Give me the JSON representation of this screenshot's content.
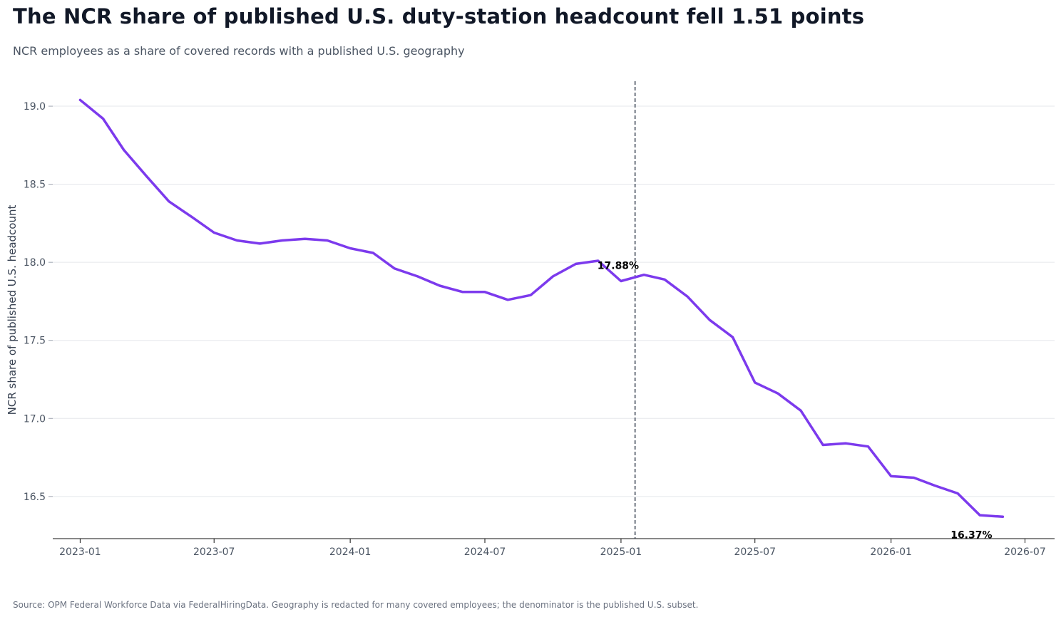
{
  "header": {
    "title": "The NCR share of published U.S. duty-station headcount fell 1.51 points",
    "subtitle": "NCR employees as a share of covered records with a published U.S. geography"
  },
  "footer": {
    "source": "Source: OPM Federal Workforce Data via FederalHiringData. Geography is redacted for many covered employees; the denominator is the published U.S. subset."
  },
  "chart_data": {
    "type": "line",
    "title": "The NCR share of published U.S. duty-station headcount fell 1.51 points",
    "subtitle": "NCR employees as a share of covered records with a published U.S. geography",
    "xlabel": "",
    "ylabel": "NCR share of published U.S. headcount",
    "ylim": [
      16.23,
      19.16
    ],
    "xlim": [
      "2022-11-25",
      "2026-08-10"
    ],
    "grid": "horizontal",
    "y_ticks": [
      16.5,
      17.0,
      17.5,
      18.0,
      18.5,
      19.0
    ],
    "y_tick_labels": [
      "16.5",
      "17.0",
      "17.5",
      "18.0",
      "18.5",
      "19.0"
    ],
    "x_ticks": [
      "2023-01-01",
      "2023-07-01",
      "2024-01-01",
      "2024-07-01",
      "2025-01-01",
      "2025-07-01",
      "2026-01-01",
      "2026-07-01"
    ],
    "x_tick_labels": [
      "2023-01",
      "2023-07",
      "2024-01",
      "2024-07",
      "2025-01",
      "2025-07",
      "2026-01",
      "2026-07"
    ],
    "line_color": "#7c3aed",
    "series": [
      {
        "x": [
          "2023-01-01",
          "2023-02-01",
          "2023-03-01",
          "2023-04-01",
          "2023-05-01",
          "2023-06-01",
          "2023-07-01",
          "2023-08-01",
          "2023-09-01",
          "2023-10-01",
          "2023-11-01",
          "2023-12-01",
          "2024-01-01",
          "2024-02-01",
          "2024-03-01",
          "2024-04-01",
          "2024-05-01",
          "2024-06-01",
          "2024-07-01",
          "2024-08-01",
          "2024-09-01",
          "2024-10-01",
          "2024-11-01",
          "2024-12-01",
          "2025-01-01",
          "2025-02-01",
          "2025-03-01",
          "2025-04-01",
          "2025-05-01",
          "2025-06-01",
          "2025-07-01",
          "2025-08-01",
          "2025-09-01",
          "2025-10-01",
          "2025-11-01",
          "2025-12-01",
          "2026-01-01",
          "2026-02-01",
          "2026-03-01",
          "2026-04-01",
          "2026-05-01",
          "2026-06-01"
        ],
        "values": [
          19.04,
          18.92,
          18.72,
          18.55,
          18.39,
          18.29,
          18.19,
          18.14,
          18.12,
          18.14,
          18.15,
          18.14,
          18.09,
          18.06,
          17.96,
          17.91,
          17.85,
          17.81,
          17.81,
          17.76,
          17.79,
          17.91,
          17.99,
          18.01,
          17.88,
          17.92,
          17.89,
          17.78,
          17.63,
          17.52,
          17.23,
          17.16,
          17.05,
          16.83,
          16.84,
          16.82,
          16.63,
          16.62,
          16.57,
          16.52,
          16.38,
          16.37
        ]
      }
    ],
    "reference_line": {
      "x": "2025-01-20",
      "style": "dashed"
    },
    "annotations": [
      {
        "x": "2025-01-01",
        "y": 17.88,
        "text": "17.88%"
      },
      {
        "x": "2026-06-01",
        "y": 16.37,
        "text": "16.37%"
      }
    ]
  }
}
